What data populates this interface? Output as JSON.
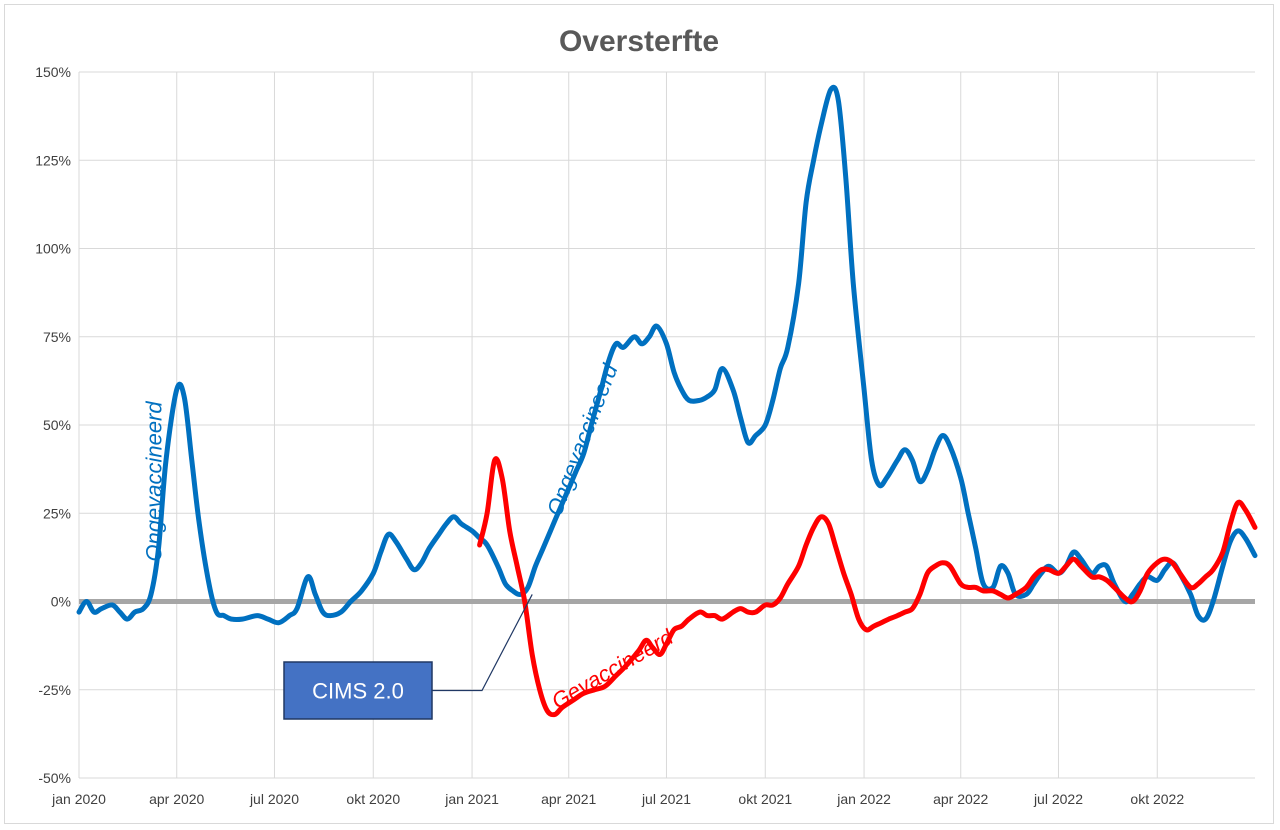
{
  "chart_data": {
    "type": "line",
    "title": "Oversterfte",
    "xlabel": "",
    "ylabel": "",
    "ylim": [
      -50,
      150
    ],
    "x_range": [
      "2020-01-01",
      "2022-12-31"
    ],
    "y_ticks": [
      "150%",
      "125%",
      "100%",
      "75%",
      "50%",
      "25%",
      "0%",
      "-25%",
      "-50%"
    ],
    "y_tick_values": [
      150,
      125,
      100,
      75,
      50,
      25,
      0,
      -25,
      -50
    ],
    "x_ticks": [
      "jan 2020",
      "apr 2020",
      "jul 2020",
      "okt 2020",
      "jan 2021",
      "apr 2021",
      "jul 2021",
      "okt 2021",
      "jan 2022",
      "apr 2022",
      "jul 2022",
      "okt 2022"
    ],
    "x_tick_dates": [
      "2020-01-01",
      "2020-04-01",
      "2020-07-01",
      "2020-10-01",
      "2021-01-01",
      "2021-04-01",
      "2021-07-01",
      "2021-10-01",
      "2022-01-01",
      "2022-04-01",
      "2022-07-01",
      "2022-10-01"
    ],
    "grid": true,
    "reference_line": {
      "y": 0,
      "color": "#a6a6a6"
    },
    "series": [
      {
        "name": "Ongevaccineerd",
        "color": "#0070c0",
        "points": [
          [
            "2020-01-01",
            -3
          ],
          [
            "2020-01-08",
            0
          ],
          [
            "2020-01-15",
            -3
          ],
          [
            "2020-01-22",
            -2
          ],
          [
            "2020-02-01",
            -1
          ],
          [
            "2020-02-08",
            -3
          ],
          [
            "2020-02-15",
            -5
          ],
          [
            "2020-02-22",
            -3
          ],
          [
            "2020-03-01",
            -2
          ],
          [
            "2020-03-08",
            2
          ],
          [
            "2020-03-15",
            15
          ],
          [
            "2020-03-22",
            40
          ],
          [
            "2020-04-01",
            60
          ],
          [
            "2020-04-08",
            58
          ],
          [
            "2020-04-15",
            40
          ],
          [
            "2020-04-22",
            22
          ],
          [
            "2020-05-01",
            5
          ],
          [
            "2020-05-08",
            -3
          ],
          [
            "2020-05-15",
            -4
          ],
          [
            "2020-05-22",
            -5
          ],
          [
            "2020-06-01",
            -5
          ],
          [
            "2020-06-15",
            -4
          ],
          [
            "2020-06-25",
            -5
          ],
          [
            "2020-07-05",
            -6
          ],
          [
            "2020-07-15",
            -4
          ],
          [
            "2020-07-22",
            -2
          ],
          [
            "2020-08-01",
            7
          ],
          [
            "2020-08-08",
            2
          ],
          [
            "2020-08-15",
            -3
          ],
          [
            "2020-08-22",
            -4
          ],
          [
            "2020-09-01",
            -3
          ],
          [
            "2020-09-10",
            0
          ],
          [
            "2020-09-20",
            3
          ],
          [
            "2020-10-01",
            8
          ],
          [
            "2020-10-08",
            14
          ],
          [
            "2020-10-15",
            19
          ],
          [
            "2020-10-22",
            17
          ],
          [
            "2020-11-01",
            12
          ],
          [
            "2020-11-08",
            9
          ],
          [
            "2020-11-15",
            11
          ],
          [
            "2020-11-22",
            15
          ],
          [
            "2020-12-01",
            19
          ],
          [
            "2020-12-08",
            22
          ],
          [
            "2020-12-15",
            24
          ],
          [
            "2020-12-22",
            22
          ],
          [
            "2021-01-01",
            20
          ],
          [
            "2021-01-08",
            18
          ],
          [
            "2021-01-15",
            16
          ],
          [
            "2021-01-25",
            10
          ],
          [
            "2021-02-01",
            5
          ],
          [
            "2021-02-08",
            3
          ],
          [
            "2021-02-15",
            2
          ],
          [
            "2021-02-22",
            4
          ],
          [
            "2021-03-01",
            10
          ],
          [
            "2021-03-08",
            15
          ],
          [
            "2021-03-15",
            20
          ],
          [
            "2021-03-22",
            25
          ],
          [
            "2021-04-01",
            32
          ],
          [
            "2021-04-08",
            37
          ],
          [
            "2021-04-15",
            42
          ],
          [
            "2021-04-22",
            50
          ],
          [
            "2021-05-01",
            60
          ],
          [
            "2021-05-08",
            68
          ],
          [
            "2021-05-15",
            73
          ],
          [
            "2021-05-22",
            72
          ],
          [
            "2021-06-01",
            75
          ],
          [
            "2021-06-08",
            73
          ],
          [
            "2021-06-15",
            75
          ],
          [
            "2021-06-22",
            78
          ],
          [
            "2021-07-01",
            73
          ],
          [
            "2021-07-08",
            65
          ],
          [
            "2021-07-15",
            60
          ],
          [
            "2021-07-22",
            57
          ],
          [
            "2021-08-01",
            57
          ],
          [
            "2021-08-08",
            58
          ],
          [
            "2021-08-15",
            60
          ],
          [
            "2021-08-22",
            66
          ],
          [
            "2021-09-01",
            60
          ],
          [
            "2021-09-08",
            52
          ],
          [
            "2021-09-15",
            45
          ],
          [
            "2021-09-22",
            47
          ],
          [
            "2021-10-01",
            50
          ],
          [
            "2021-10-08",
            57
          ],
          [
            "2021-10-15",
            66
          ],
          [
            "2021-10-22",
            72
          ],
          [
            "2021-11-01",
            90
          ],
          [
            "2021-11-08",
            113
          ],
          [
            "2021-11-15",
            125
          ],
          [
            "2021-11-22",
            135
          ],
          [
            "2021-12-01",
            145
          ],
          [
            "2021-12-08",
            142
          ],
          [
            "2021-12-15",
            120
          ],
          [
            "2021-12-22",
            90
          ],
          [
            "2022-01-01",
            60
          ],
          [
            "2022-01-08",
            40
          ],
          [
            "2022-01-15",
            33
          ],
          [
            "2022-01-22",
            35
          ],
          [
            "2022-02-01",
            40
          ],
          [
            "2022-02-08",
            43
          ],
          [
            "2022-02-15",
            40
          ],
          [
            "2022-02-22",
            34
          ],
          [
            "2022-03-01",
            37
          ],
          [
            "2022-03-08",
            43
          ],
          [
            "2022-03-15",
            47
          ],
          [
            "2022-03-22",
            44
          ],
          [
            "2022-04-01",
            35
          ],
          [
            "2022-04-08",
            25
          ],
          [
            "2022-04-15",
            15
          ],
          [
            "2022-04-22",
            5
          ],
          [
            "2022-05-01",
            4
          ],
          [
            "2022-05-08",
            10
          ],
          [
            "2022-05-15",
            8
          ],
          [
            "2022-05-22",
            2
          ],
          [
            "2022-06-01",
            2
          ],
          [
            "2022-06-08",
            5
          ],
          [
            "2022-06-15",
            8
          ],
          [
            "2022-06-22",
            10
          ],
          [
            "2022-07-01",
            8
          ],
          [
            "2022-07-08",
            10
          ],
          [
            "2022-07-15",
            14
          ],
          [
            "2022-07-22",
            12
          ],
          [
            "2022-08-01",
            8
          ],
          [
            "2022-08-08",
            10
          ],
          [
            "2022-08-15",
            10
          ],
          [
            "2022-08-22",
            5
          ],
          [
            "2022-09-01",
            0
          ],
          [
            "2022-09-08",
            2
          ],
          [
            "2022-09-15",
            5
          ],
          [
            "2022-09-22",
            7
          ],
          [
            "2022-10-01",
            6
          ],
          [
            "2022-10-08",
            9
          ],
          [
            "2022-10-15",
            11
          ],
          [
            "2022-10-22",
            8
          ],
          [
            "2022-11-01",
            2
          ],
          [
            "2022-11-08",
            -4
          ],
          [
            "2022-11-15",
            -5
          ],
          [
            "2022-11-22",
            0
          ],
          [
            "2022-12-01",
            10
          ],
          [
            "2022-12-08",
            17
          ],
          [
            "2022-12-15",
            20
          ],
          [
            "2022-12-22",
            18
          ],
          [
            "2022-12-31",
            13
          ]
        ]
      },
      {
        "name": "Gevaccineerd",
        "color": "#ff0000",
        "points": [
          [
            "2021-01-08",
            16
          ],
          [
            "2021-01-15",
            25
          ],
          [
            "2021-01-22",
            40
          ],
          [
            "2021-01-29",
            35
          ],
          [
            "2021-02-05",
            20
          ],
          [
            "2021-02-12",
            10
          ],
          [
            "2021-02-19",
            0
          ],
          [
            "2021-02-26",
            -15
          ],
          [
            "2021-03-05",
            -25
          ],
          [
            "2021-03-12",
            -31
          ],
          [
            "2021-03-19",
            -32
          ],
          [
            "2021-03-26",
            -30
          ],
          [
            "2021-04-05",
            -28
          ],
          [
            "2021-04-15",
            -26
          ],
          [
            "2021-04-25",
            -25
          ],
          [
            "2021-05-05",
            -24
          ],
          [
            "2021-05-15",
            -21
          ],
          [
            "2021-05-25",
            -18
          ],
          [
            "2021-06-05",
            -14
          ],
          [
            "2021-06-12",
            -11
          ],
          [
            "2021-06-18",
            -13
          ],
          [
            "2021-06-25",
            -15
          ],
          [
            "2021-07-01",
            -12
          ],
          [
            "2021-07-08",
            -8
          ],
          [
            "2021-07-15",
            -7
          ],
          [
            "2021-07-22",
            -5
          ],
          [
            "2021-08-01",
            -3
          ],
          [
            "2021-08-08",
            -4
          ],
          [
            "2021-08-15",
            -4
          ],
          [
            "2021-08-22",
            -5
          ],
          [
            "2021-09-01",
            -3
          ],
          [
            "2021-09-08",
            -2
          ],
          [
            "2021-09-15",
            -3
          ],
          [
            "2021-09-22",
            -3
          ],
          [
            "2021-10-01",
            -1
          ],
          [
            "2021-10-08",
            -1
          ],
          [
            "2021-10-15",
            1
          ],
          [
            "2021-10-22",
            5
          ],
          [
            "2021-11-01",
            10
          ],
          [
            "2021-11-08",
            16
          ],
          [
            "2021-11-15",
            21
          ],
          [
            "2021-11-22",
            24
          ],
          [
            "2021-11-29",
            22
          ],
          [
            "2021-12-06",
            15
          ],
          [
            "2021-12-13",
            8
          ],
          [
            "2021-12-20",
            2
          ],
          [
            "2021-12-27",
            -5
          ],
          [
            "2022-01-03",
            -8
          ],
          [
            "2022-01-10",
            -7
          ],
          [
            "2022-01-17",
            -6
          ],
          [
            "2022-01-24",
            -5
          ],
          [
            "2022-02-01",
            -4
          ],
          [
            "2022-02-08",
            -3
          ],
          [
            "2022-02-15",
            -2
          ],
          [
            "2022-02-22",
            2
          ],
          [
            "2022-03-01",
            8
          ],
          [
            "2022-03-08",
            10
          ],
          [
            "2022-03-15",
            11
          ],
          [
            "2022-03-22",
            10
          ],
          [
            "2022-04-01",
            5
          ],
          [
            "2022-04-08",
            4
          ],
          [
            "2022-04-15",
            4
          ],
          [
            "2022-04-22",
            3
          ],
          [
            "2022-05-01",
            3
          ],
          [
            "2022-05-08",
            2
          ],
          [
            "2022-05-15",
            1
          ],
          [
            "2022-05-22",
            2
          ],
          [
            "2022-06-01",
            4
          ],
          [
            "2022-06-08",
            7
          ],
          [
            "2022-06-15",
            9
          ],
          [
            "2022-06-22",
            9
          ],
          [
            "2022-07-01",
            8
          ],
          [
            "2022-07-08",
            10
          ],
          [
            "2022-07-15",
            12
          ],
          [
            "2022-07-22",
            10
          ],
          [
            "2022-08-01",
            7
          ],
          [
            "2022-08-08",
            7
          ],
          [
            "2022-08-15",
            6
          ],
          [
            "2022-08-22",
            4
          ],
          [
            "2022-09-01",
            1
          ],
          [
            "2022-09-08",
            0
          ],
          [
            "2022-09-15",
            3
          ],
          [
            "2022-09-22",
            8
          ],
          [
            "2022-10-01",
            11
          ],
          [
            "2022-10-08",
            12
          ],
          [
            "2022-10-15",
            11
          ],
          [
            "2022-10-22",
            8
          ],
          [
            "2022-11-01",
            4
          ],
          [
            "2022-11-08",
            5
          ],
          [
            "2022-11-15",
            7
          ],
          [
            "2022-11-22",
            9
          ],
          [
            "2022-12-01",
            14
          ],
          [
            "2022-12-08",
            22
          ],
          [
            "2022-12-15",
            28
          ],
          [
            "2022-12-22",
            26
          ],
          [
            "2022-12-31",
            21
          ]
        ]
      }
    ],
    "annotations": [
      {
        "id": "ongev1",
        "text": "Ongevaccineerd",
        "color": "#0070c0",
        "rotation": -90,
        "anchor_date": "2020-03-18",
        "anchor_value": 34
      },
      {
        "id": "ongev2",
        "text": "Ongevaccineerd",
        "color": "#0070c0",
        "rotation": -69,
        "anchor_date": "2021-04-20",
        "anchor_value": 45
      },
      {
        "id": "gevac",
        "text": "Gevaccineerd",
        "color": "#ff0000",
        "rotation": -30,
        "anchor_date": "2021-05-15",
        "anchor_value": -21
      }
    ],
    "callout": {
      "text": "CIMS 2.0",
      "fill": "#4472c4",
      "text_color": "#ffffff",
      "pointer_date": "2021-02-26",
      "pointer_value": 2
    }
  }
}
